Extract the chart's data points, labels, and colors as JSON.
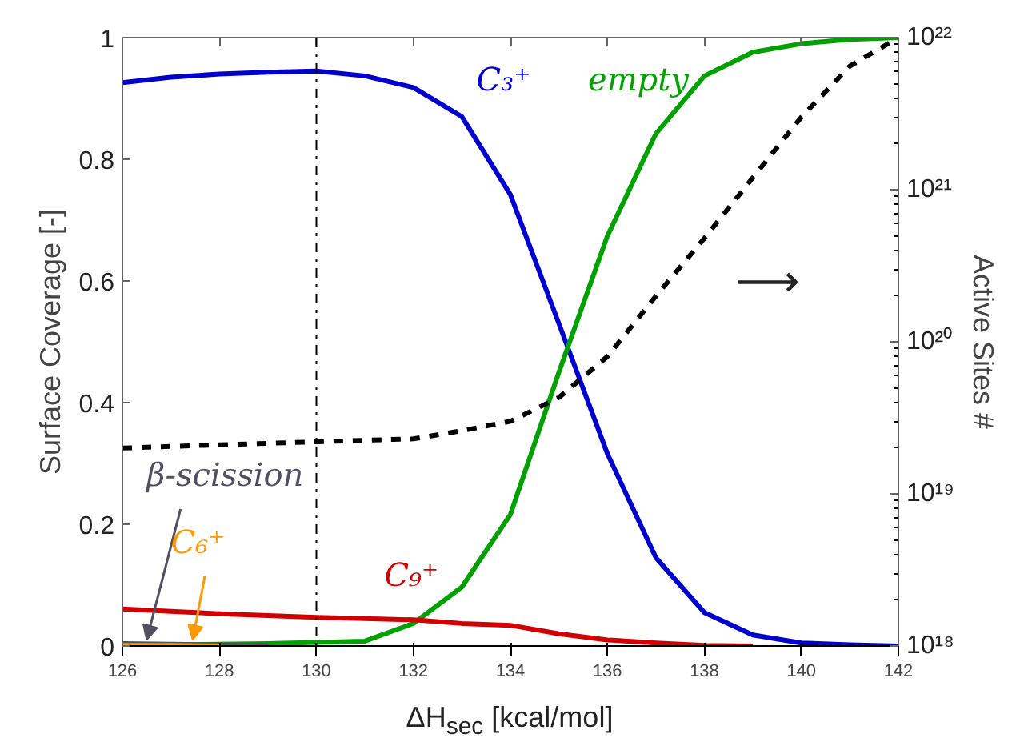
{
  "chart_data": {
    "type": "line",
    "xlabel": "ΔH$_{sec}$ [kcal/mol]",
    "ylabel": "Surface Coverage [-]",
    "y2label": "Active Sites #",
    "x": [
      126,
      127,
      128,
      129,
      130,
      131,
      132,
      133,
      134,
      135,
      136,
      137,
      138,
      139,
      140,
      141,
      142
    ],
    "series": [
      {
        "name": "C₃⁺",
        "color": "#0000cc",
        "values": [
          0.926,
          0.935,
          0.94,
          0.943,
          0.945,
          0.937,
          0.918,
          0.87,
          0.742,
          0.53,
          0.316,
          0.145,
          0.055,
          0.018,
          0.005,
          0.002,
          0.0
        ]
      },
      {
        "name": "empty",
        "color": "#00a000",
        "values": [
          0.002,
          0.002,
          0.003,
          0.004,
          0.006,
          0.008,
          0.037,
          0.097,
          0.216,
          0.45,
          0.674,
          0.842,
          0.937,
          0.976,
          0.99,
          0.997,
          1.0
        ]
      },
      {
        "name": "C₉⁺",
        "color": "#d00000",
        "values": [
          0.061,
          0.057,
          0.053,
          0.05,
          0.047,
          0.045,
          0.043,
          0.037,
          0.034,
          0.02,
          0.01,
          0.005,
          0.001,
          0.0,
          null,
          null,
          null
        ]
      },
      {
        "name": "β-scission",
        "color": "#505060",
        "values": [
          0.004,
          0.003,
          0.002,
          0.001,
          null,
          null,
          null,
          null,
          null,
          null,
          null,
          null,
          null,
          null,
          null,
          null,
          null
        ]
      },
      {
        "name": "C₆⁺",
        "color": "#ff9900",
        "values": [
          0.001,
          0.001,
          0.0,
          null,
          null,
          null,
          null,
          null,
          null,
          null,
          null,
          null,
          null,
          null,
          null,
          null,
          null
        ]
      },
      {
        "color": "#000000",
        "axis": "y2",
        "line_style": "dashed",
        "values": [
          2e+19,
          2.05e+19,
          2.1e+19,
          2.15e+19,
          2.2e+19,
          2.25e+19,
          2.3e+19,
          2.6e+19,
          3e+19,
          4.3e+19,
          8e+19,
          2e+20,
          4.8e+20,
          1.2e+21,
          3e+21,
          6.5e+21,
          1e+22
        ]
      }
    ],
    "xlim": [
      126,
      142
    ],
    "xticks": [
      126,
      128,
      130,
      132,
      134,
      136,
      138,
      140,
      142
    ],
    "ylim": [
      0,
      1
    ],
    "yticks": [
      0,
      0.2,
      0.4,
      0.6,
      0.8,
      1
    ],
    "y2lim": [
      1e+18,
      1e+22
    ],
    "log": "y2",
    "y2ticks": [
      {
        "value": 1e+18,
        "label": "10¹⁸"
      },
      {
        "value": 1e+19,
        "label": "10¹⁹"
      },
      {
        "value": 1e+20,
        "label": "10²⁰"
      },
      {
        "value": 1e+21,
        "label": "10²¹"
      },
      {
        "value": 1e+22,
        "label": "10²²"
      }
    ],
    "ref_lines": [
      {
        "axis": "x",
        "value": 130,
        "color": "#000000",
        "line_style": "dashdot"
      }
    ],
    "annotations": [
      "⟶"
    ],
    "grid": false,
    "marker": "none",
    "line_style": "solid"
  }
}
